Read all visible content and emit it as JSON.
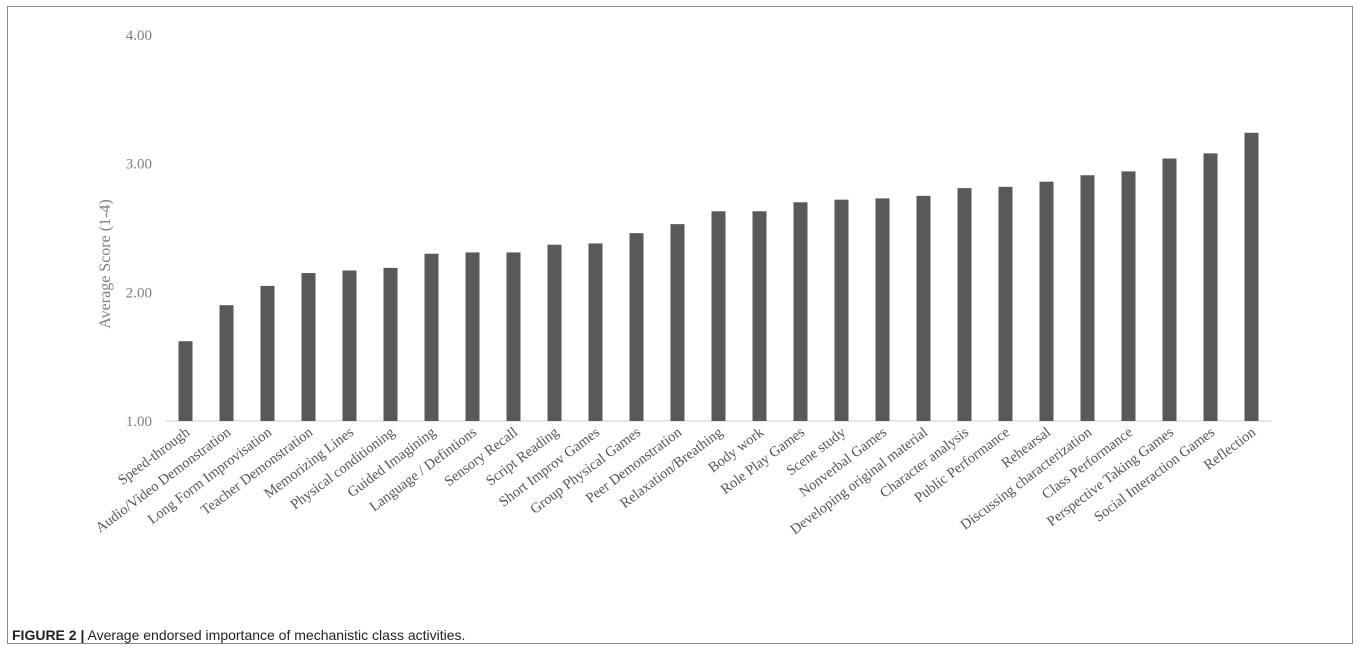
{
  "chart_data": {
    "type": "bar",
    "ylabel": "Average Score (1-4)",
    "ylim": [
      1.0,
      4.0
    ],
    "yticks": [
      "1.00",
      "2.00",
      "3.00",
      "4.00"
    ],
    "grid": false,
    "bar_color": "#595959",
    "categories": [
      "Speed-through",
      "Audio/Video Demonstration",
      "Long Form Improvisation",
      "Teacher Demonstration",
      "Memorizing Lines",
      "Physical conditioning",
      "Guided Imagining",
      "Language / Defintions",
      "Sensory Recall",
      "Script Reading",
      "Short Improv Games",
      "Group Physical Games",
      "Peer Demonstration",
      "Relaxation/Breathing",
      "Body work",
      "Role Play Games",
      "Scene study",
      "Nonverbal Games",
      "Developing original material",
      "Character analysis",
      "Public Performance",
      "Rehearsal",
      "Discussing characterization",
      "Class Performance",
      "Perspective Taking Games",
      "Social Interaction Games",
      "Reflection"
    ],
    "values": [
      1.62,
      1.9,
      2.05,
      2.15,
      2.17,
      2.19,
      2.3,
      2.31,
      2.31,
      2.37,
      2.38,
      2.46,
      2.53,
      2.63,
      2.63,
      2.7,
      2.72,
      2.73,
      2.75,
      2.81,
      2.82,
      2.86,
      2.91,
      2.94,
      3.04,
      3.08,
      3.24
    ]
  },
  "caption": {
    "figure_label": "FIGURE 2 |",
    "text": " Average endorsed importance of mechanistic class activities."
  }
}
